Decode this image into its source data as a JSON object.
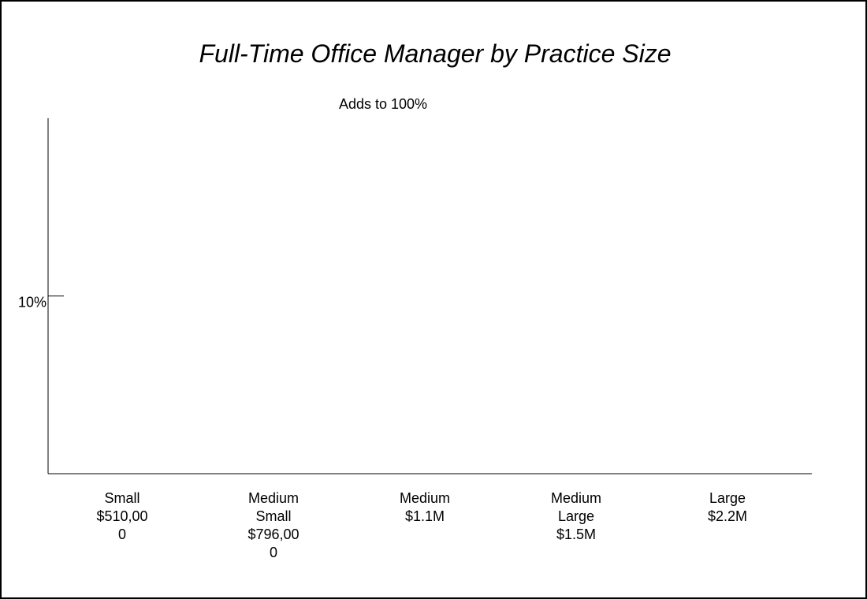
{
  "chart_data": {
    "type": "bar",
    "title": "Full-Time Office Manager by Practice Size",
    "subtitle": "Adds to 100%",
    "xlabel": "",
    "ylabel": "",
    "ylim": [
      0,
      20
    ],
    "yticks": [
      {
        "value": 10,
        "label": "10%"
      }
    ],
    "categories": [
      "Small $510,000",
      "Medium Small $796,000",
      "Medium $1.1M",
      "Medium Large $1.5M",
      "Large $2.2M"
    ],
    "category_label_lines": [
      [
        "Small",
        "$510,00",
        "0"
      ],
      [
        "Medium",
        "Small",
        "$796,00",
        "0"
      ],
      [
        "Medium",
        "$1.1M"
      ],
      [
        "Medium",
        "Large",
        "$1.5M"
      ],
      [
        "Large",
        "$2.2M"
      ]
    ],
    "values": [
      null,
      null,
      null,
      null,
      null
    ],
    "grid": false,
    "legend": "none"
  },
  "colors": {
    "axis": "#000000",
    "background": "#ffffff",
    "border": "#000000"
  }
}
